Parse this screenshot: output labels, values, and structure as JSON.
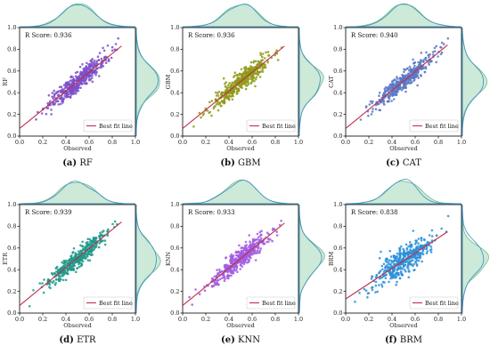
{
  "chart_data": [
    {
      "type": "scatter",
      "model": "RF",
      "ylabel": "RF",
      "xlabel": "Observed",
      "score_text": "R Score: 0.936",
      "caption_letter": "(a)",
      "caption_name": "RF",
      "legend": "Best fit line",
      "xlim": [
        0.0,
        1.0
      ],
      "ylim": [
        0.0,
        1.0
      ],
      "xticks": [
        "0.0",
        "0.2",
        "0.4",
        "0.6",
        "0.8",
        "1.0"
      ],
      "yticks": [
        "0.0",
        "0.2",
        "0.4",
        "0.6",
        "0.8",
        "1.0"
      ],
      "fit_line": {
        "x": [
          0.0,
          0.88
        ],
        "y": [
          0.07,
          0.83
        ]
      },
      "point_color": "#7b4fc9",
      "fit_color": "#c0304a",
      "marginal_colors": [
        "#3e8fc4",
        "#6fbf8f"
      ],
      "spread": 0.045,
      "grid": false,
      "legend_position": "lower-right"
    },
    {
      "type": "scatter",
      "model": "GBM",
      "ylabel": "GBM",
      "xlabel": "Observed",
      "score_text": "R Score: 0.936",
      "caption_letter": "(b)",
      "caption_name": "GBM",
      "legend": "Best fit line",
      "xlim": [
        0.0,
        1.0
      ],
      "ylim": [
        0.0,
        1.0
      ],
      "xticks": [
        "0.0",
        "0.2",
        "0.4",
        "0.6",
        "0.8",
        "1.0"
      ],
      "yticks": [
        "0.0",
        "0.2",
        "0.4",
        "0.6",
        "0.8",
        "1.0"
      ],
      "fit_line": {
        "x": [
          0.0,
          0.88
        ],
        "y": [
          0.07,
          0.83
        ]
      },
      "point_color": "#8f9a18",
      "fit_color": "#c0304a",
      "marginal_colors": [
        "#3e8fc4",
        "#6fbf8f"
      ],
      "spread": 0.045,
      "grid": false,
      "legend_position": "lower-right"
    },
    {
      "type": "scatter",
      "model": "CAT",
      "ylabel": "CAT",
      "xlabel": "Observed",
      "score_text": "R Score: 0.940",
      "caption_letter": "(c)",
      "caption_name": "CAT",
      "legend": "Best fit line",
      "xlim": [
        0.0,
        1.0
      ],
      "ylim": [
        0.0,
        1.0
      ],
      "xticks": [
        "0.0",
        "0.2",
        "0.4",
        "0.6",
        "0.8",
        "1.0"
      ],
      "yticks": [
        "0.0",
        "0.2",
        "0.4",
        "0.6",
        "0.8",
        "1.0"
      ],
      "fit_line": {
        "x": [
          0.0,
          0.88
        ],
        "y": [
          0.07,
          0.84
        ]
      },
      "point_color": "#5a78c6",
      "fit_color": "#c0304a",
      "marginal_colors": [
        "#3e8fc4",
        "#6fbf8f"
      ],
      "spread": 0.043,
      "grid": false,
      "legend_position": "lower-right"
    },
    {
      "type": "scatter",
      "model": "ETR",
      "ylabel": "ETR",
      "xlabel": "Observed",
      "score_text": "R Score: 0.939",
      "caption_letter": "(d)",
      "caption_name": "ETR",
      "legend": "Best fit line",
      "xlim": [
        0.0,
        1.0
      ],
      "ylim": [
        0.0,
        1.0
      ],
      "xticks": [
        "0.0",
        "0.2",
        "0.4",
        "0.6",
        "0.8",
        "1.0"
      ],
      "yticks": [
        "0.0",
        "0.2",
        "0.4",
        "0.6",
        "0.8",
        "1.0"
      ],
      "fit_line": {
        "x": [
          0.0,
          0.88
        ],
        "y": [
          0.07,
          0.84
        ]
      },
      "point_color": "#1f9a8a",
      "fit_color": "#c0304a",
      "marginal_colors": [
        "#3e8fc4",
        "#6fbf8f"
      ],
      "spread": 0.044,
      "grid": false,
      "legend_position": "lower-right"
    },
    {
      "type": "scatter",
      "model": "KNN",
      "ylabel": "KNN",
      "xlabel": "Observed",
      "score_text": "R Score: 0.933",
      "caption_letter": "(e)",
      "caption_name": "KNN",
      "legend": "Best fit line",
      "xlim": [
        0.0,
        1.0
      ],
      "ylim": [
        0.0,
        1.0
      ],
      "xticks": [
        "0.0",
        "0.2",
        "0.4",
        "0.6",
        "0.8",
        "1.0"
      ],
      "yticks": [
        "0.0",
        "0.2",
        "0.4",
        "0.6",
        "0.8",
        "1.0"
      ],
      "fit_line": {
        "x": [
          0.0,
          0.88
        ],
        "y": [
          0.07,
          0.83
        ]
      },
      "point_color": "#a15ce0",
      "fit_color": "#c0304a",
      "marginal_colors": [
        "#3e8fc4",
        "#6fbf8f"
      ],
      "spread": 0.046,
      "grid": false,
      "legend_position": "lower-right"
    },
    {
      "type": "scatter",
      "model": "BRM",
      "ylabel": "BRM",
      "xlabel": "Observed",
      "score_text": "R Score: 0.838",
      "caption_letter": "(f)",
      "caption_name": "BRM",
      "legend": "Best fit line",
      "xlim": [
        0.0,
        1.0
      ],
      "ylim": [
        0.0,
        1.0
      ],
      "xticks": [
        "0.0",
        "0.2",
        "0.4",
        "0.6",
        "0.8",
        "1.0"
      ],
      "yticks": [
        "0.0",
        "0.2",
        "0.4",
        "0.6",
        "0.8",
        "1.0"
      ],
      "fit_line": {
        "x": [
          0.0,
          0.88
        ],
        "y": [
          0.13,
          0.75
        ]
      },
      "point_color": "#2a8fd8",
      "fit_color": "#c0304a",
      "marginal_colors": [
        "#3e8fc4",
        "#6fbf8f"
      ],
      "spread": 0.065,
      "grid": false,
      "legend_position": "lower-right"
    }
  ]
}
